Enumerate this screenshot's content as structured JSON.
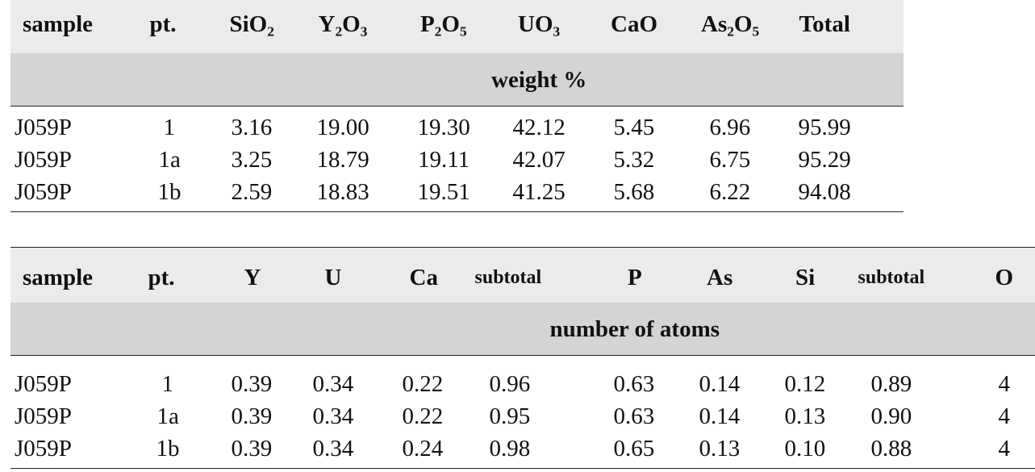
{
  "table1": {
    "headers": [
      "sample",
      "pt.",
      "SiO₂",
      "Y₂O₃",
      "P₂O₅",
      "UO₃",
      "CaO",
      "As₂O₅",
      "Total"
    ],
    "unit": "weight %",
    "rows": [
      [
        "J059P",
        "1",
        "3.16",
        "19.00",
        "19.30",
        "42.12",
        "5.45",
        "6.96",
        "95.99"
      ],
      [
        "J059P",
        "1a",
        "3.25",
        "18.79",
        "19.11",
        "42.07",
        "5.32",
        "6.75",
        "95.29"
      ],
      [
        "J059P",
        "1b",
        "2.59",
        "18.83",
        "19.51",
        "41.25",
        "5.68",
        "6.22",
        "94.08"
      ]
    ]
  },
  "table2": {
    "headers": [
      "sample",
      "pt.",
      "Y",
      "U",
      "Ca",
      "subtotal",
      "P",
      "As",
      "Si",
      "subtotal",
      "O"
    ],
    "unit": "number of atoms",
    "rows": [
      [
        "J059P",
        "1",
        "0.39",
        "0.34",
        "0.22",
        "0.96",
        "0.63",
        "0.14",
        "0.12",
        "0.89",
        "4"
      ],
      [
        "J059P",
        "1a",
        "0.39",
        "0.34",
        "0.22",
        "0.95",
        "0.63",
        "0.14",
        "0.13",
        "0.90",
        "4"
      ],
      [
        "J059P",
        "1b",
        "0.39",
        "0.34",
        "0.24",
        "0.98",
        "0.65",
        "0.13",
        "0.10",
        "0.88",
        "4"
      ]
    ]
  }
}
